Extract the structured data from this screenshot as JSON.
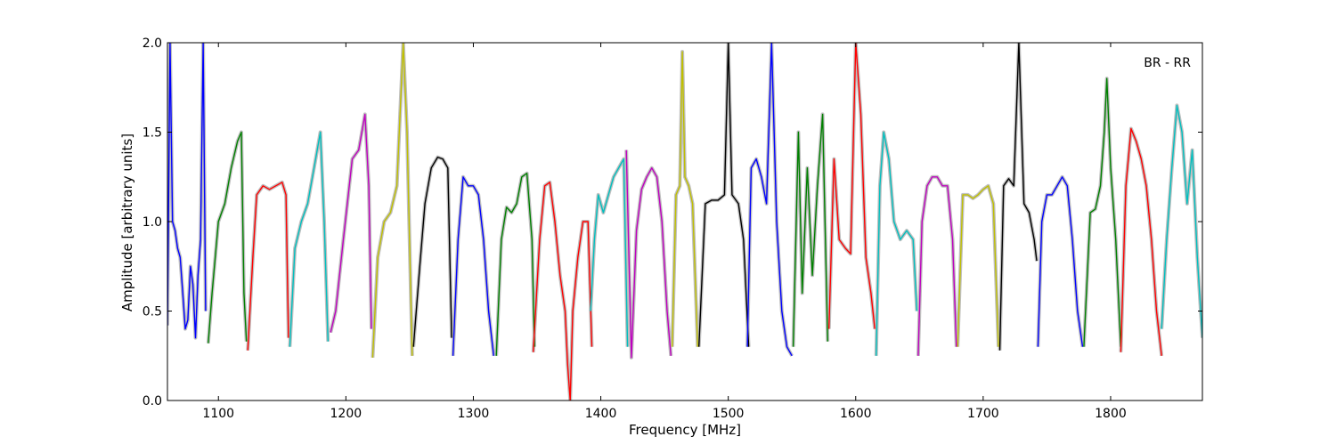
{
  "chart_data": {
    "type": "line",
    "title": "",
    "xlabel": "Frequency [MHz]",
    "ylabel": "Amplitude [arbitrary units]",
    "annotation": "BR - RR",
    "xlim": [
      1060,
      1872
    ],
    "ylim": [
      0,
      2.0
    ],
    "xticks": [
      1100,
      1200,
      1300,
      1400,
      1500,
      1600,
      1700,
      1800
    ],
    "yticks": [
      0.0,
      0.5,
      1.0,
      1.5,
      2.0
    ],
    "xtick_labels": [
      "1100",
      "1200",
      "1300",
      "1400",
      "1500",
      "1600",
      "1700",
      "1800"
    ],
    "ytick_labels": [
      "0.0",
      "0.5",
      "1.0",
      "1.5",
      "2.0"
    ],
    "grid": false,
    "background_band_color": "#bfbfbf",
    "series": [
      {
        "color": "#0000ff",
        "x": [
          1060,
          1062,
          1064,
          1066,
          1068,
          1070,
          1072,
          1074,
          1076,
          1078,
          1080,
          1082,
          1084,
          1086,
          1088,
          1090
        ],
        "y": [
          0.42,
          2.0,
          1.0,
          0.95,
          0.85,
          0.8,
          0.6,
          0.4,
          0.45,
          0.75,
          0.65,
          0.35,
          0.7,
          0.9,
          2.0,
          0.5
        ]
      },
      {
        "color": "#008000",
        "x": [
          1092,
          1095,
          1100,
          1105,
          1110,
          1115,
          1118,
          1120,
          1122
        ],
        "y": [
          0.32,
          0.6,
          1.0,
          1.1,
          1.3,
          1.45,
          1.5,
          0.6,
          0.33
        ]
      },
      {
        "color": "#ff0000",
        "x": [
          1123,
          1127,
          1130,
          1135,
          1140,
          1145,
          1150,
          1153,
          1155
        ],
        "y": [
          0.28,
          0.8,
          1.15,
          1.2,
          1.18,
          1.2,
          1.22,
          1.15,
          0.35
        ]
      },
      {
        "color": "#00bfbf",
        "x": [
          1156,
          1160,
          1165,
          1170,
          1175,
          1180,
          1183,
          1186
        ],
        "y": [
          0.3,
          0.85,
          1.0,
          1.1,
          1.3,
          1.5,
          1.0,
          0.33
        ]
      },
      {
        "color": "#bf00bf",
        "x": [
          1188,
          1192,
          1198,
          1205,
          1210,
          1215,
          1218,
          1220
        ],
        "y": [
          0.38,
          0.5,
          0.9,
          1.35,
          1.4,
          1.6,
          1.2,
          0.4
        ]
      },
      {
        "color": "#bfbf00",
        "x": [
          1221,
          1225,
          1230,
          1235,
          1240,
          1245,
          1248,
          1252
        ],
        "y": [
          0.24,
          0.8,
          1.0,
          1.05,
          1.2,
          2.0,
          1.5,
          0.25
        ]
      },
      {
        "color": "#000000",
        "x": [
          1253,
          1258,
          1262,
          1267,
          1272,
          1276,
          1280,
          1283
        ],
        "y": [
          0.3,
          0.75,
          1.1,
          1.3,
          1.36,
          1.35,
          1.3,
          0.35
        ]
      },
      {
        "color": "#0000ff",
        "x": [
          1284,
          1288,
          1292,
          1296,
          1300,
          1304,
          1308,
          1312,
          1316
        ],
        "y": [
          0.25,
          0.9,
          1.25,
          1.2,
          1.2,
          1.15,
          0.9,
          0.5,
          0.25
        ]
      },
      {
        "color": "#008000",
        "x": [
          1318,
          1322,
          1326,
          1330,
          1334,
          1338,
          1342,
          1346,
          1348
        ],
        "y": [
          0.25,
          0.9,
          1.08,
          1.05,
          1.1,
          1.25,
          1.27,
          0.9,
          0.3
        ]
      },
      {
        "color": "#ff0000",
        "x": [
          1347,
          1352,
          1356,
          1360,
          1364,
          1368,
          1372,
          1374,
          1376,
          1378,
          1382,
          1386,
          1390,
          1393
        ],
        "y": [
          0.27,
          0.9,
          1.2,
          1.22,
          1.0,
          0.7,
          0.5,
          0.2,
          0.0,
          0.5,
          0.8,
          1.0,
          1.0,
          0.3
        ]
      },
      {
        "color": "#00bfbf",
        "x": [
          1392,
          1395,
          1398,
          1402,
          1406,
          1410,
          1414,
          1418,
          1421
        ],
        "y": [
          0.5,
          0.9,
          1.15,
          1.05,
          1.15,
          1.25,
          1.3,
          1.35,
          0.3
        ]
      },
      {
        "color": "#bf00bf",
        "x": [
          1420,
          1424,
          1428,
          1432,
          1436,
          1440,
          1444,
          1448,
          1452,
          1455
        ],
        "y": [
          1.4,
          0.24,
          0.95,
          1.18,
          1.25,
          1.3,
          1.25,
          1.0,
          0.5,
          0.25
        ]
      },
      {
        "color": "#bfbf00",
        "x": [
          1456,
          1459,
          1462,
          1464,
          1466,
          1469,
          1472,
          1476
        ],
        "y": [
          0.3,
          1.15,
          1.2,
          1.95,
          1.25,
          1.2,
          1.1,
          0.3
        ]
      },
      {
        "color": "#000000",
        "x": [
          1477,
          1482,
          1487,
          1492,
          1497,
          1500,
          1503,
          1508,
          1512,
          1516
        ],
        "y": [
          0.3,
          1.1,
          1.12,
          1.12,
          1.15,
          2.0,
          1.15,
          1.1,
          0.9,
          0.3
        ]
      },
      {
        "color": "#0000ff",
        "x": [
          1515,
          1518,
          1522,
          1526,
          1530,
          1534,
          1538,
          1542,
          1546,
          1550
        ],
        "y": [
          0.3,
          1.3,
          1.35,
          1.25,
          1.1,
          2.0,
          1.0,
          0.5,
          0.3,
          0.25
        ]
      },
      {
        "color": "#008000",
        "x": [
          1551,
          1555,
          1558,
          1562,
          1566,
          1570,
          1574,
          1578
        ],
        "y": [
          0.3,
          1.5,
          0.6,
          1.3,
          0.7,
          1.2,
          1.6,
          0.33
        ]
      },
      {
        "color": "#ff0000",
        "x": [
          1579,
          1583,
          1587,
          1592,
          1596,
          1600,
          1604,
          1608,
          1612,
          1615
        ],
        "y": [
          0.4,
          1.35,
          0.9,
          0.85,
          0.82,
          2.0,
          1.6,
          0.8,
          0.6,
          0.4
        ]
      },
      {
        "color": "#00bfbf",
        "x": [
          1616,
          1619,
          1622,
          1626,
          1630,
          1635,
          1640,
          1645,
          1648
        ],
        "y": [
          0.25,
          1.2,
          1.5,
          1.35,
          1.0,
          0.9,
          0.95,
          0.9,
          0.5
        ]
      },
      {
        "color": "#bf00bf",
        "x": [
          1649,
          1652,
          1656,
          1660,
          1664,
          1668,
          1672,
          1676,
          1679
        ],
        "y": [
          0.25,
          1.0,
          1.2,
          1.25,
          1.25,
          1.2,
          1.2,
          0.9,
          0.3
        ]
      },
      {
        "color": "#bfbf00",
        "x": [
          1680,
          1684,
          1688,
          1692,
          1696,
          1700,
          1704,
          1708,
          1712
        ],
        "y": [
          0.3,
          1.15,
          1.15,
          1.13,
          1.15,
          1.18,
          1.2,
          1.1,
          0.3
        ]
      },
      {
        "color": "#000000",
        "x": [
          1713,
          1716,
          1720,
          1724,
          1728,
          1732,
          1736,
          1740,
          1742
        ],
        "y": [
          0.28,
          1.2,
          1.24,
          1.2,
          2.0,
          1.1,
          1.05,
          0.9,
          0.78
        ]
      },
      {
        "color": "#0000ff",
        "x": [
          1743,
          1746,
          1750,
          1754,
          1758,
          1762,
          1766,
          1770,
          1774,
          1778
        ],
        "y": [
          0.3,
          1.0,
          1.15,
          1.15,
          1.2,
          1.25,
          1.2,
          0.9,
          0.5,
          0.3
        ]
      },
      {
        "color": "#008000",
        "x": [
          1779,
          1784,
          1788,
          1792,
          1795,
          1797,
          1800,
          1804,
          1808
        ],
        "y": [
          0.3,
          1.05,
          1.07,
          1.2,
          1.5,
          1.8,
          1.3,
          0.9,
          0.3
        ]
      },
      {
        "color": "#ff0000",
        "x": [
          1808,
          1812,
          1816,
          1820,
          1824,
          1828,
          1832,
          1836,
          1840
        ],
        "y": [
          0.27,
          1.2,
          1.52,
          1.45,
          1.35,
          1.2,
          0.9,
          0.5,
          0.25
        ]
      },
      {
        "color": "#00bfbf",
        "x": [
          1840,
          1844,
          1848,
          1852,
          1856,
          1860,
          1864,
          1868,
          1872
        ],
        "y": [
          0.4,
          0.9,
          1.3,
          1.65,
          1.5,
          1.1,
          1.4,
          0.8,
          0.35
        ]
      }
    ]
  }
}
